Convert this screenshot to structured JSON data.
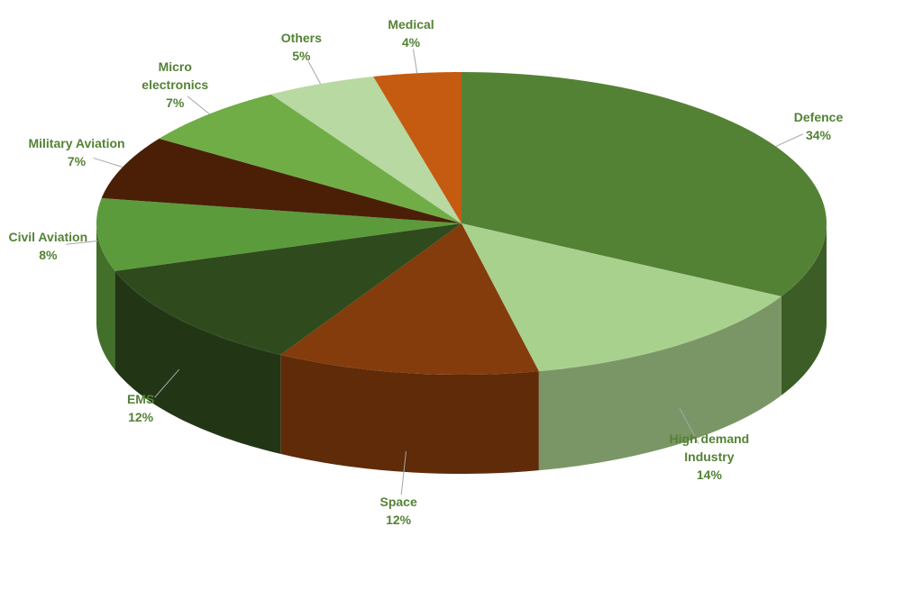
{
  "chart_data": {
    "type": "pie3d",
    "categories": [
      "Defence",
      "High demand Industry",
      "Space",
      "EMS",
      "Civil Aviation",
      "Military Aviation",
      "Micro electronics",
      "Others",
      "Medical"
    ],
    "values": [
      34,
      14,
      12,
      12,
      8,
      7,
      7,
      5,
      4
    ],
    "value_labels": [
      "34%",
      "14%",
      "12%",
      "12%",
      "8%",
      "7%",
      "7%",
      "5%",
      "4%"
    ],
    "colors": [
      "#548235",
      "#a9d18e",
      "#843c0c",
      "#2f4b1e",
      "#5b9b3b",
      "#4a1f06",
      "#70ad47",
      "#b8d9a1",
      "#c55a11"
    ]
  }
}
